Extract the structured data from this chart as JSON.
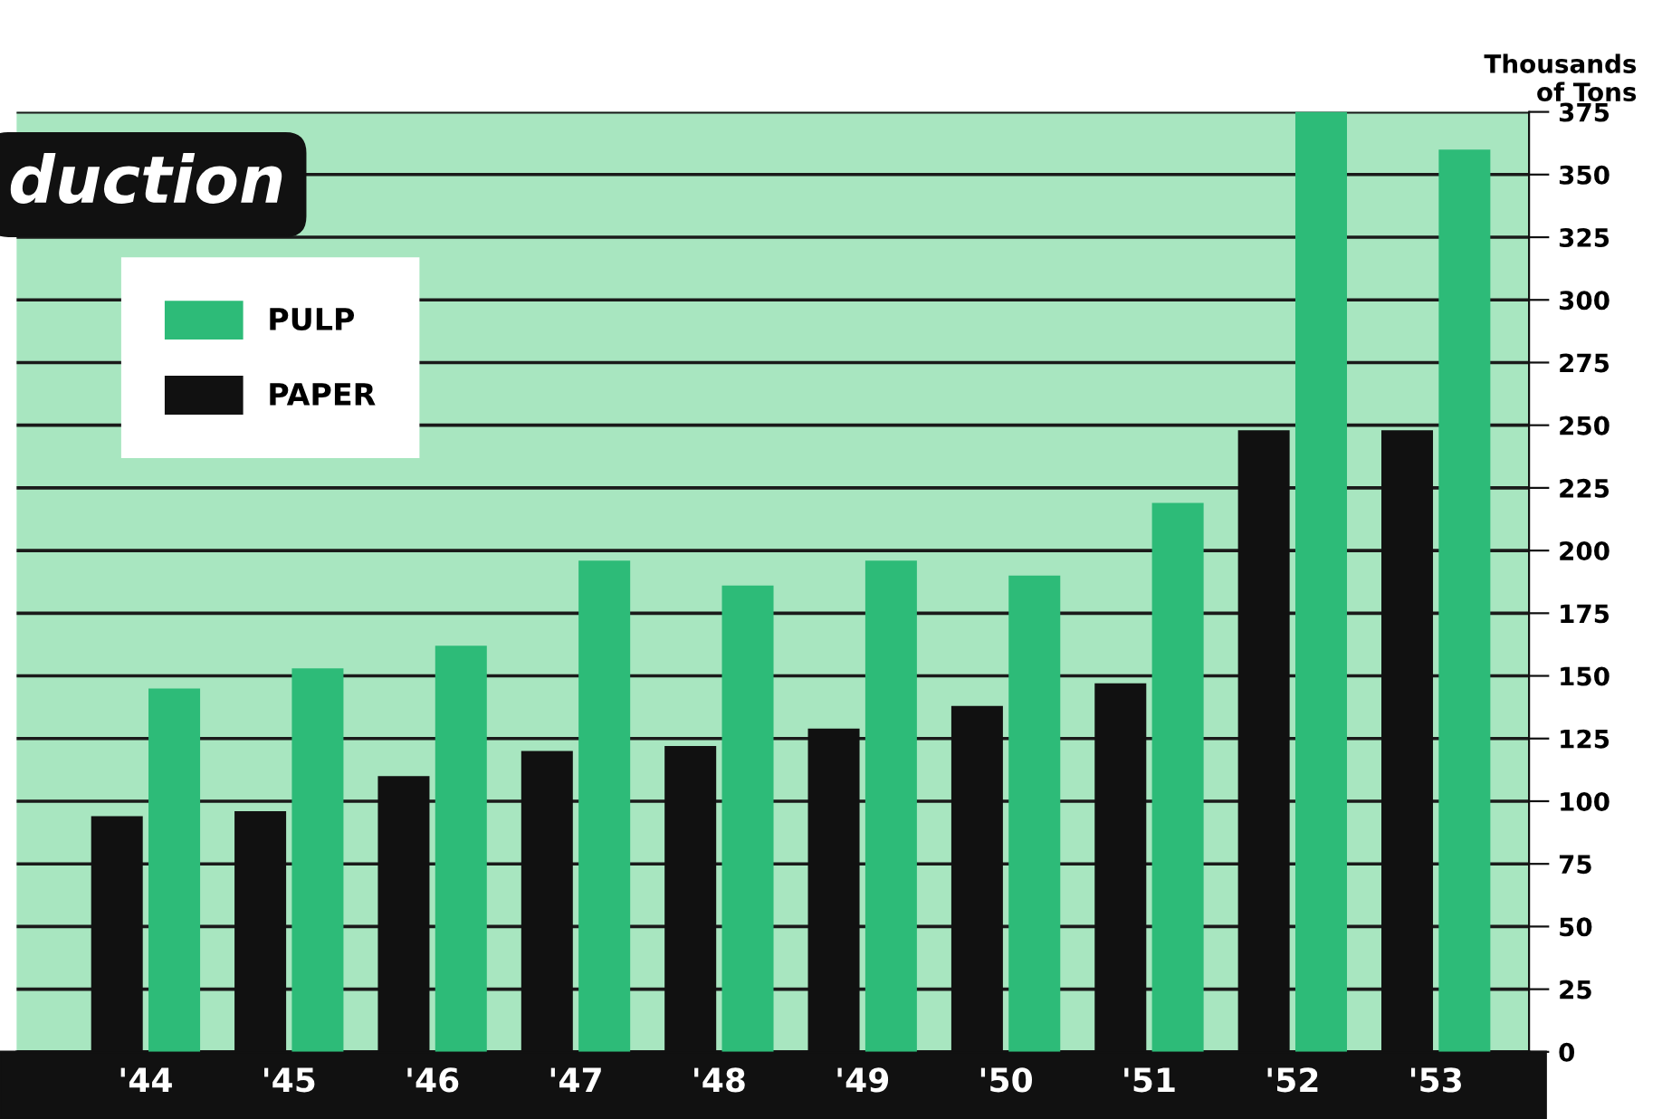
{
  "chart_data": {
    "type": "bar",
    "title": "duction",
    "ylabel": "Thousands\nof Tons",
    "categories": [
      "'44",
      "'45",
      "'46",
      "'47",
      "'48",
      "'49",
      "'50",
      "'51",
      "'52",
      "'53"
    ],
    "series": [
      {
        "name": "PAPER",
        "color": "#111111",
        "values": [
          94,
          96,
          110,
          120,
          122,
          129,
          138,
          147,
          248,
          248
        ]
      },
      {
        "name": "PULP",
        "color": "#2dbb78",
        "values": [
          145,
          153,
          162,
          196,
          186,
          196,
          190,
          219,
          375,
          360
        ]
      }
    ],
    "ylim": [
      0,
      375
    ],
    "yticks": [
      0,
      25,
      50,
      75,
      100,
      125,
      150,
      175,
      200,
      225,
      250,
      275,
      300,
      325,
      350,
      375
    ],
    "grid": "y",
    "legend": "top left"
  }
}
